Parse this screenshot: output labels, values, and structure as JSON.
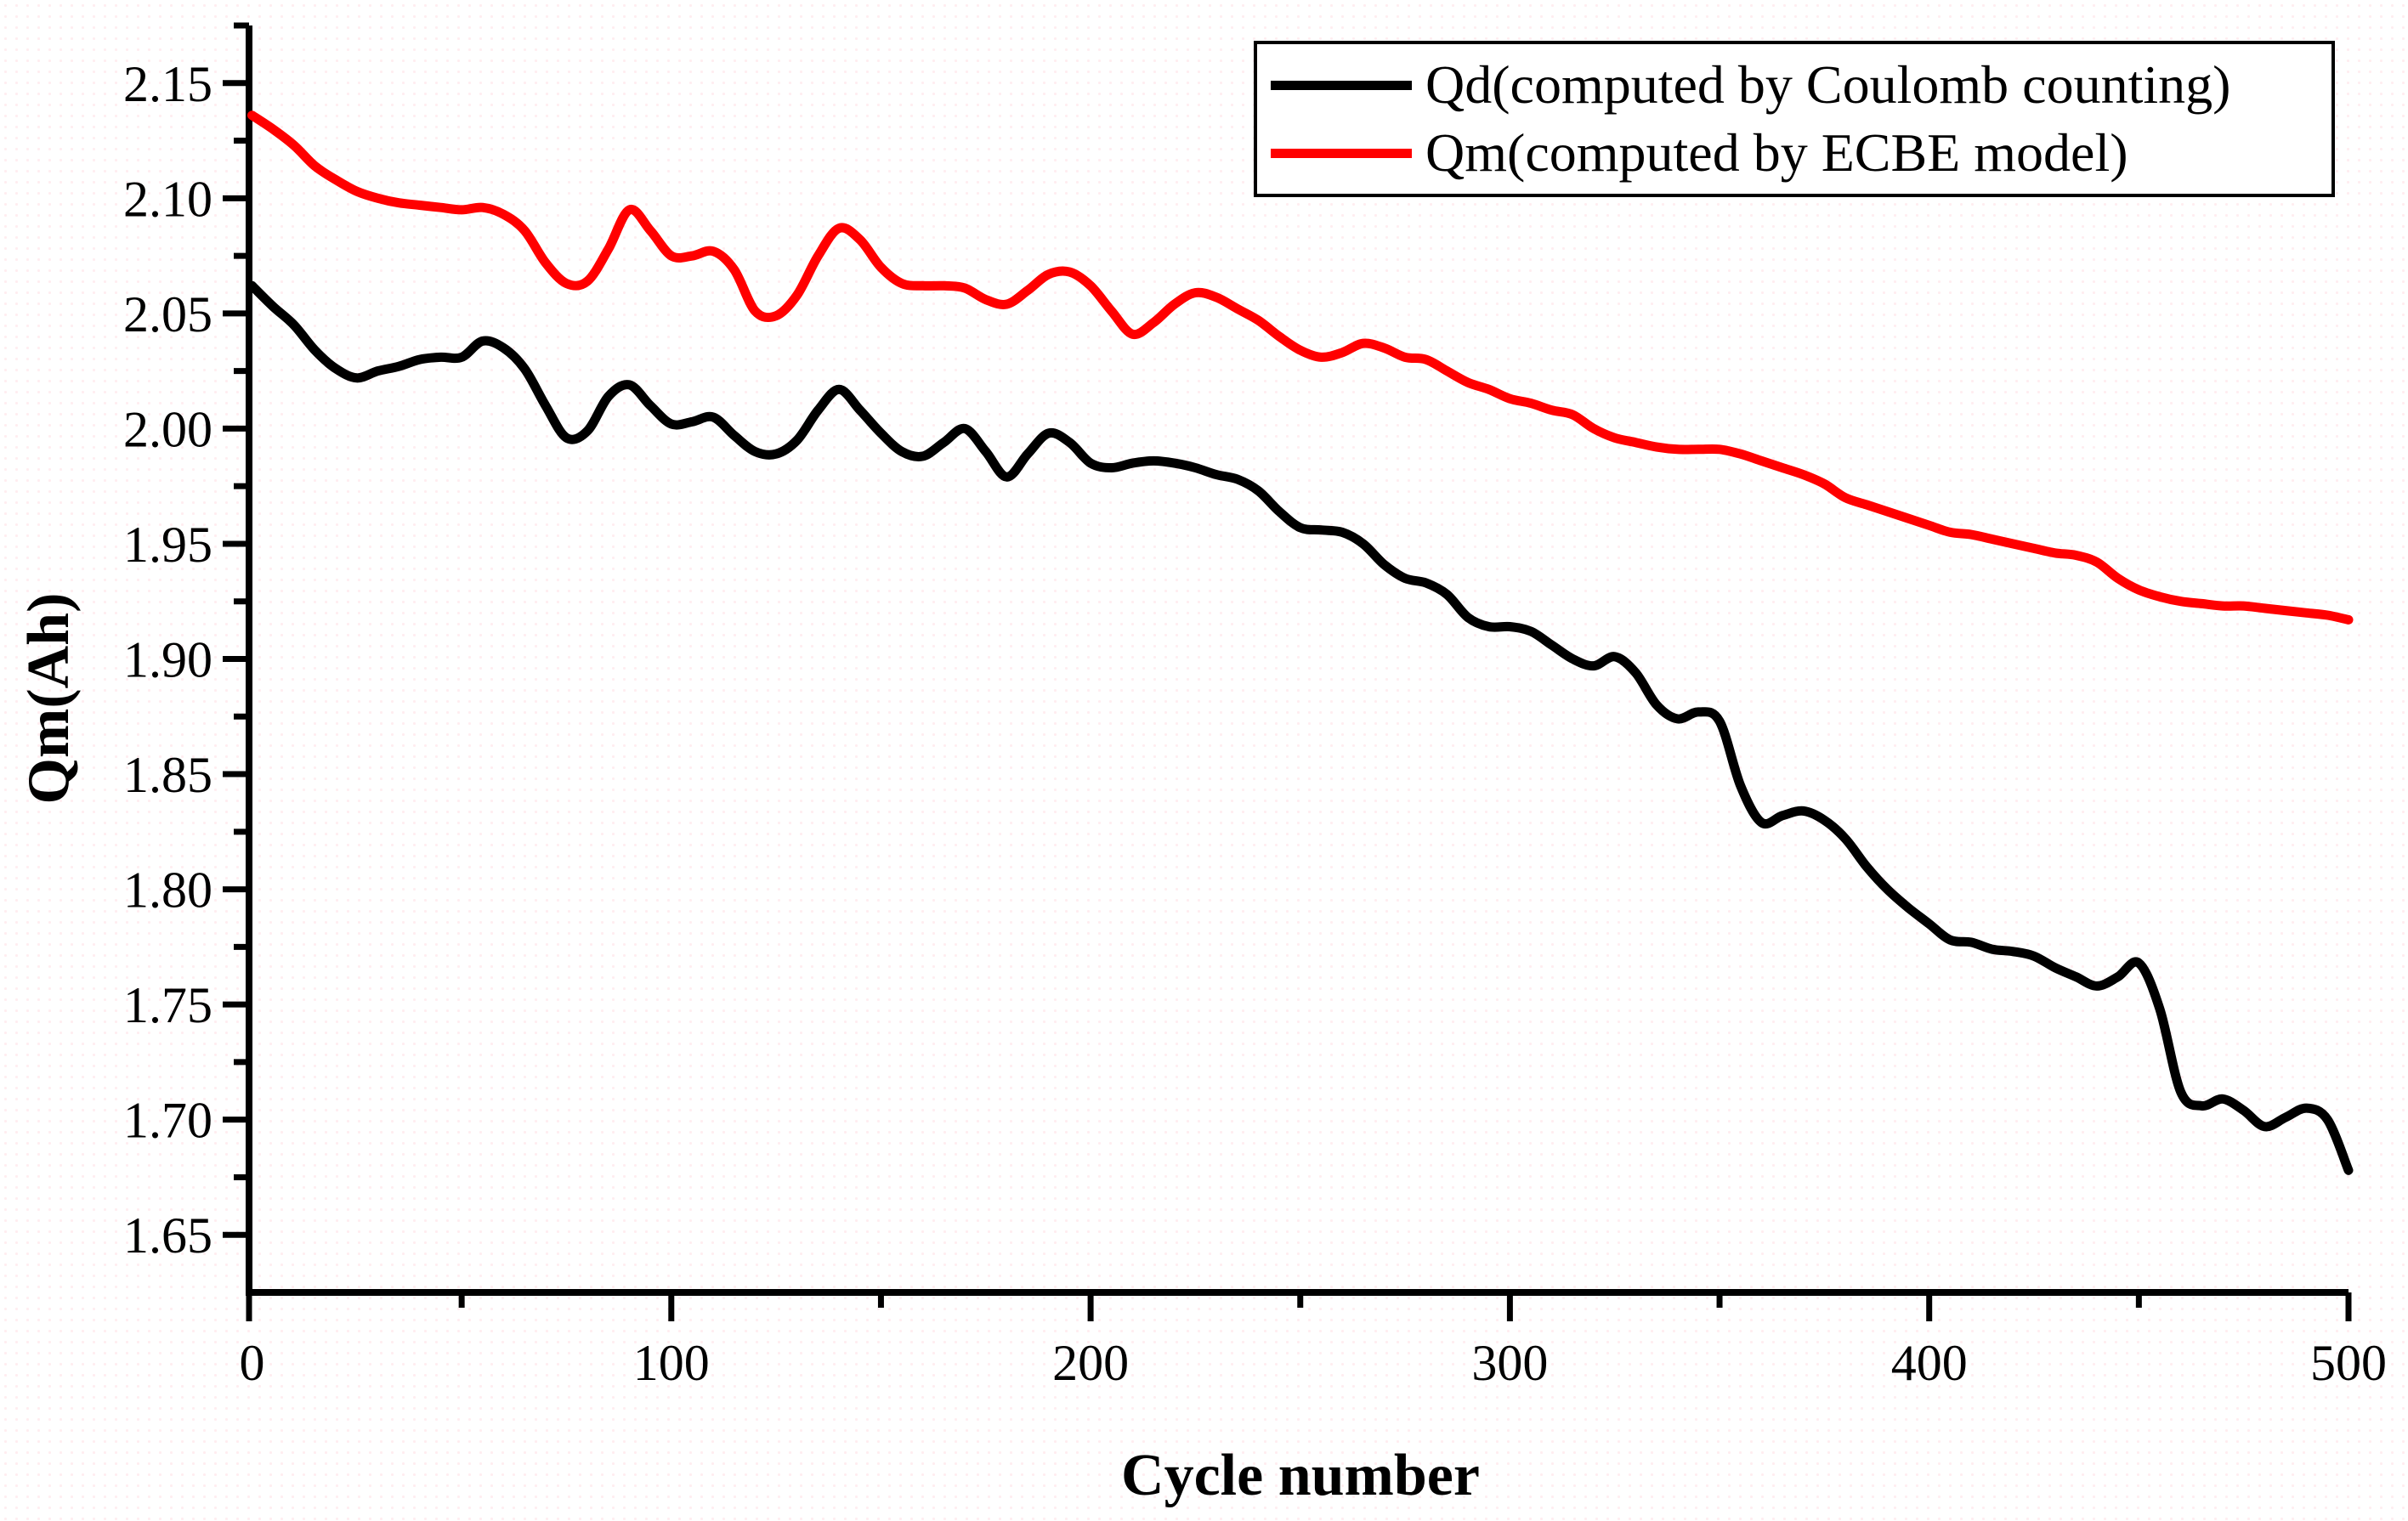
{
  "figure": {
    "background": "#ffffff",
    "axis_color": "#000000",
    "x_axis": {
      "title": "Cycle number",
      "range": [
        0,
        500
      ],
      "major_ticks": [
        0,
        100,
        200,
        300,
        400,
        500
      ],
      "tick_labels": [
        "0",
        "100",
        "200",
        "300",
        "400",
        "500"
      ],
      "minor_ticks": [
        50,
        150,
        250,
        350,
        450
      ]
    },
    "y_axis": {
      "title": "Qm(Ah)",
      "range": [
        1.625,
        2.175
      ],
      "major_ticks": [
        1.65,
        1.7,
        1.75,
        1.8,
        1.85,
        1.9,
        1.95,
        2.0,
        2.05,
        2.1,
        2.15
      ],
      "tick_labels": [
        "1.65",
        "1.70",
        "1.75",
        "1.80",
        "1.85",
        "1.90",
        "1.95",
        "2.00",
        "2.05",
        "2.10",
        "2.15"
      ],
      "minor_ticks": [
        1.675,
        1.725,
        1.775,
        1.825,
        1.875,
        1.925,
        1.975,
        2.025,
        2.075,
        2.125,
        2.175
      ]
    },
    "legend": {
      "border_color": "#000000",
      "position": "top-right",
      "entries": [
        {
          "label": "Qd(computed by Coulomb counting)",
          "color": "#000000"
        },
        {
          "label": "Qm(computed by ECBE model)",
          "color": "#ff0000"
        }
      ]
    }
  },
  "chart_data": {
    "type": "line",
    "title": "",
    "xlabel": "Cycle number",
    "ylabel": "Qm(Ah)",
    "xlim": [
      0,
      500
    ],
    "ylim": [
      1.625,
      2.175
    ],
    "grid": false,
    "legend_position": "top-right",
    "x": [
      0,
      5,
      10,
      15,
      20,
      25,
      30,
      35,
      40,
      45,
      50,
      55,
      60,
      65,
      70,
      75,
      80,
      85,
      90,
      95,
      100,
      105,
      110,
      115,
      120,
      125,
      130,
      135,
      140,
      145,
      150,
      155,
      160,
      165,
      170,
      175,
      180,
      185,
      190,
      195,
      200,
      205,
      210,
      215,
      220,
      225,
      230,
      235,
      240,
      245,
      250,
      255,
      260,
      265,
      270,
      275,
      280,
      285,
      290,
      295,
      300,
      305,
      310,
      315,
      320,
      325,
      330,
      335,
      340,
      345,
      350,
      355,
      360,
      365,
      370,
      375,
      380,
      385,
      390,
      395,
      400,
      405,
      410,
      415,
      420,
      425,
      430,
      435,
      440,
      445,
      450,
      455,
      460,
      465,
      470,
      475,
      480,
      485,
      490,
      495,
      500
    ],
    "series": [
      {
        "name": "Qd(computed by Coulomb counting)",
        "color": "#000000",
        "line_width": 11,
        "values": [
          2.062,
          2.053,
          2.045,
          2.034,
          2.026,
          2.022,
          2.025,
          2.027,
          2.03,
          2.031,
          2.031,
          2.038,
          2.035,
          2.026,
          2.01,
          1.996,
          1.999,
          2.014,
          2.019,
          2.01,
          2.002,
          2.003,
          2.005,
          1.997,
          1.99,
          1.989,
          1.995,
          2.008,
          2.017,
          2.008,
          1.998,
          1.99,
          1.988,
          1.994,
          2.0,
          1.99,
          1.979,
          1.989,
          1.998,
          1.994,
          1.985,
          1.983,
          1.985,
          1.986,
          1.985,
          1.983,
          1.98,
          1.978,
          1.973,
          1.964,
          1.957,
          1.956,
          1.955,
          1.95,
          1.941,
          1.935,
          1.933,
          1.928,
          1.918,
          1.914,
          1.914,
          1.912,
          1.906,
          1.9,
          1.897,
          1.901,
          1.894,
          1.88,
          1.874,
          1.877,
          1.873,
          1.845,
          1.829,
          1.832,
          1.834,
          1.83,
          1.822,
          1.81,
          1.8,
          1.792,
          1.785,
          1.778,
          1.777,
          1.774,
          1.773,
          1.771,
          1.766,
          1.762,
          1.758,
          1.762,
          1.768,
          1.748,
          1.712,
          1.706,
          1.709,
          1.704,
          1.697,
          1.701,
          1.705,
          1.7,
          1.678
        ]
      },
      {
        "name": "Qm(computed by ECBE model)",
        "color": "#ff0000",
        "line_width": 11,
        "values": [
          2.136,
          2.13,
          2.123,
          2.114,
          2.108,
          2.103,
          2.1,
          2.098,
          2.097,
          2.096,
          2.095,
          2.096,
          2.093,
          2.086,
          2.072,
          2.063,
          2.064,
          2.078,
          2.095,
          2.086,
          2.075,
          2.075,
          2.077,
          2.069,
          2.051,
          2.049,
          2.058,
          2.075,
          2.087,
          2.082,
          2.07,
          2.063,
          2.062,
          2.062,
          2.061,
          2.056,
          2.054,
          2.06,
          2.067,
          2.068,
          2.062,
          2.051,
          2.041,
          2.046,
          2.054,
          2.059,
          2.057,
          2.052,
          2.047,
          2.04,
          2.034,
          2.031,
          2.033,
          2.037,
          2.035,
          2.031,
          2.03,
          2.025,
          2.02,
          2.017,
          2.013,
          2.011,
          2.008,
          2.006,
          2.0,
          1.996,
          1.994,
          1.992,
          1.991,
          1.991,
          1.991,
          1.989,
          1.986,
          1.983,
          1.98,
          1.976,
          1.97,
          1.967,
          1.964,
          1.961,
          1.958,
          1.955,
          1.954,
          1.952,
          1.95,
          1.948,
          1.946,
          1.945,
          1.942,
          1.935,
          1.93,
          1.927,
          1.925,
          1.924,
          1.923,
          1.923,
          1.922,
          1.921,
          1.92,
          1.919,
          1.917
        ]
      }
    ]
  }
}
